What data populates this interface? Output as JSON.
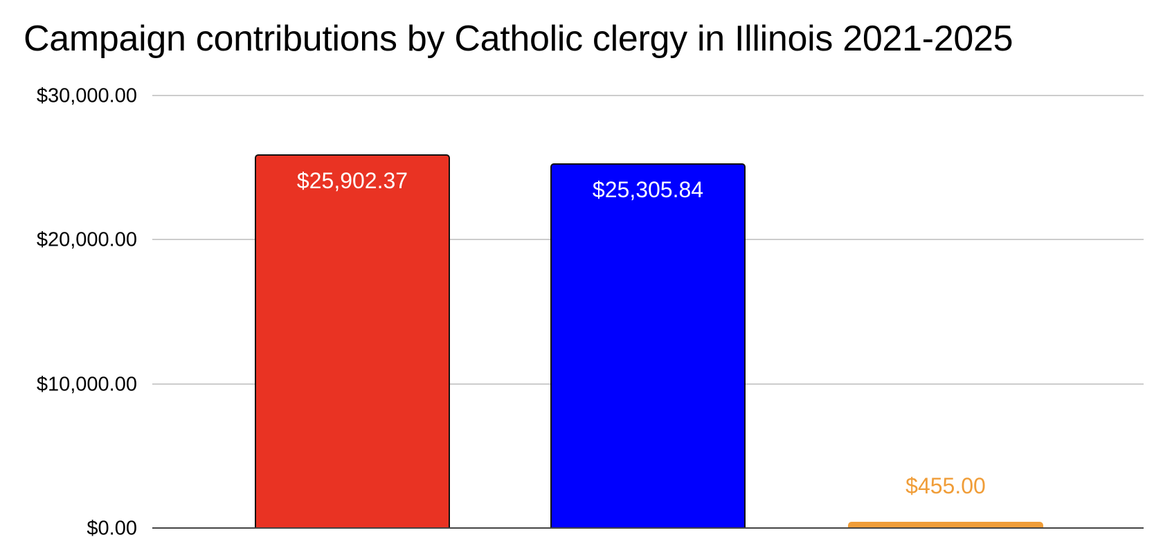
{
  "chart_data": {
    "type": "bar",
    "title": "Campaign contributions by Catholic clergy in Illinois 2021-2025",
    "xlabel": "",
    "ylabel": "",
    "categories": [
      "",
      "",
      ""
    ],
    "values": [
      25902.37,
      25305.84,
      455.0
    ],
    "data_labels": [
      "$25,902.37",
      "$25,305.84",
      "$455.00"
    ],
    "colors": [
      "#E93323",
      "#0000FF",
      "#F09D38"
    ],
    "ylim": [
      0,
      30000
    ],
    "yticks": [
      0,
      10000,
      20000,
      30000
    ],
    "ytick_labels": [
      "$0.00",
      "$10,000.00",
      "$20,000.00",
      "$30,000.00"
    ],
    "grid": true,
    "legend": "none"
  }
}
